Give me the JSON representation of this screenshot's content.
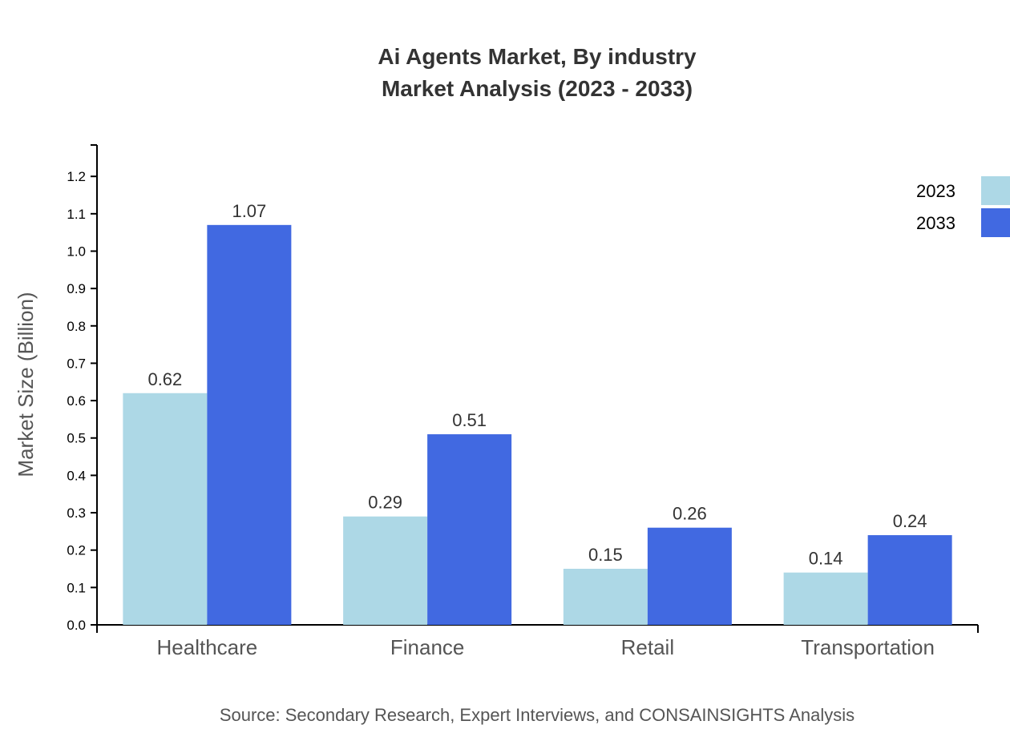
{
  "chart_data": {
    "type": "bar",
    "title": "Ai Agents Market, By industry",
    "subtitle": "Market Analysis (2023 - 2033)",
    "xlabel": "",
    "ylabel": "Market Size (Billion)",
    "categories": [
      "Healthcare",
      "Finance",
      "Retail",
      "Transportation"
    ],
    "series": [
      {
        "name": "2023",
        "values": [
          0.62,
          0.29,
          0.15,
          0.14
        ],
        "color": "#ADD8E6"
      },
      {
        "name": "2033",
        "values": [
          1.07,
          0.51,
          0.26,
          0.24
        ],
        "color": "#4169E1"
      }
    ],
    "ylim": [
      0,
      1.284
    ],
    "yticks": [
      "0.0",
      "0.1",
      "0.2",
      "0.3",
      "0.4",
      "0.5",
      "0.6",
      "0.7",
      "0.8",
      "0.9",
      "1.0",
      "1.1",
      "1.2"
    ],
    "grid": false,
    "legend": "top-right",
    "source": "Source: Secondary Research, Expert Interviews, and CONSAINSIGHTS Analysis"
  }
}
